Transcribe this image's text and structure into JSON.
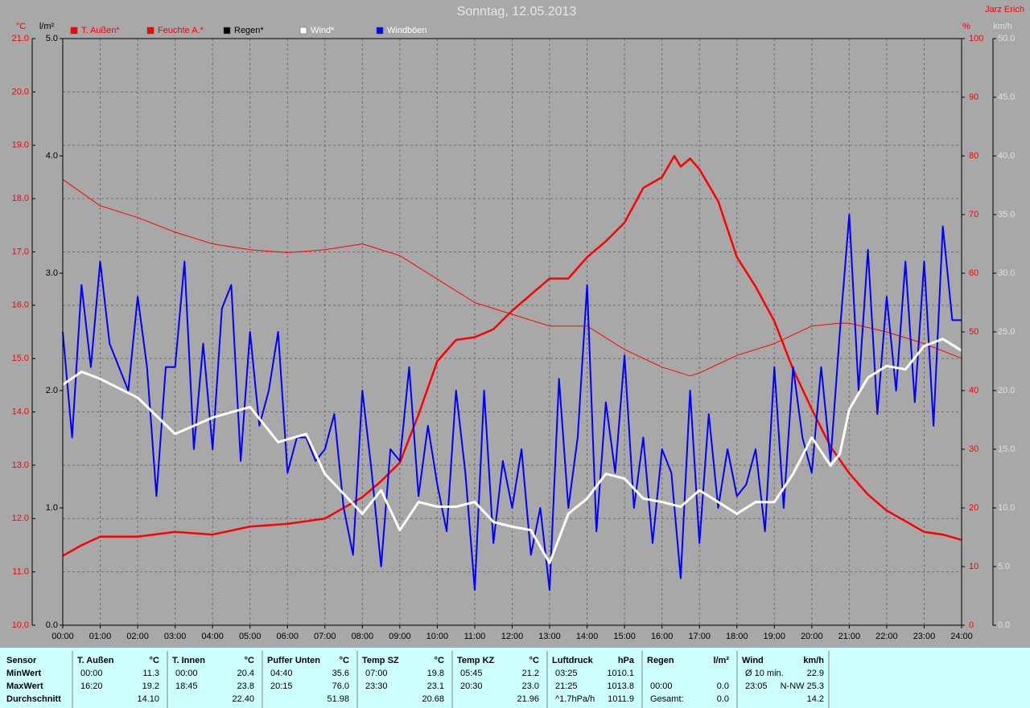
{
  "chart_data": {
    "type": "line",
    "title": "Sonntag, 12.05.2013",
    "author": "Jarz Erich",
    "ylabel": "°C",
    "y2label": "%",
    "y3label": "l/m²",
    "y4label": "km/h",
    "grid": true,
    "xlim": [
      0,
      24
    ],
    "xticks": [
      {
        "value": 0,
        "label": "00:00"
      },
      {
        "value": 1,
        "label": "01:00"
      },
      {
        "value": 2,
        "label": "02:00"
      },
      {
        "value": 3,
        "label": "03:00"
      },
      {
        "value": 4,
        "label": "04:00"
      },
      {
        "value": 5,
        "label": "05:00"
      },
      {
        "value": 6,
        "label": "06:00"
      },
      {
        "value": 7,
        "label": "07:00"
      },
      {
        "value": 8,
        "label": "08:00"
      },
      {
        "value": 9,
        "label": "09:00"
      },
      {
        "value": 10,
        "label": "10:00"
      },
      {
        "value": 11,
        "label": "11:00"
      },
      {
        "value": 12,
        "label": "12:00"
      },
      {
        "value": 13,
        "label": "13:00"
      },
      {
        "value": 14,
        "label": "14:00"
      },
      {
        "value": 15,
        "label": "15:00"
      },
      {
        "value": 16,
        "label": "16:00"
      },
      {
        "value": 17,
        "label": "17:00"
      },
      {
        "value": 18,
        "label": "18:00"
      },
      {
        "value": 19,
        "label": "19:00"
      },
      {
        "value": 20,
        "label": "20:00"
      },
      {
        "value": 21,
        "label": "21:00"
      },
      {
        "value": 22,
        "label": "22:00"
      },
      {
        "value": 23,
        "label": "23:00"
      },
      {
        "value": 24,
        "label": "24:00"
      }
    ],
    "ylim": [
      10,
      21
    ],
    "yticks": [
      {
        "value": 10,
        "label": "10.0"
      },
      {
        "value": 11,
        "label": "11.0"
      },
      {
        "value": 12,
        "label": "12.0"
      },
      {
        "value": 13,
        "label": "13.0"
      },
      {
        "value": 14,
        "label": "14.0"
      },
      {
        "value": 15,
        "label": "15.0"
      },
      {
        "value": 16,
        "label": "16.0"
      },
      {
        "value": 17,
        "label": "17.0"
      },
      {
        "value": 18,
        "label": "18.0"
      },
      {
        "value": 19,
        "label": "19.0"
      },
      {
        "value": 20,
        "label": "20.0"
      },
      {
        "value": 21,
        "label": "21.0"
      }
    ],
    "y2lim": [
      0,
      100
    ],
    "y2ticks": [
      0,
      10,
      20,
      30,
      40,
      50,
      60,
      70,
      80,
      90,
      100
    ],
    "y3lim": [
      0,
      5
    ],
    "y3ticks": [
      {
        "value": 0,
        "label": "0.0"
      },
      {
        "value": 1,
        "label": "1.0"
      },
      {
        "value": 2,
        "label": "2.0"
      },
      {
        "value": 3,
        "label": "3.0"
      },
      {
        "value": 4,
        "label": "4.0"
      },
      {
        "value": 5,
        "label": "5.0"
      }
    ],
    "y4lim": [
      0,
      50
    ],
    "y4ticks": [
      {
        "value": 0,
        "label": "0.0"
      },
      {
        "value": 5,
        "label": "5.0"
      },
      {
        "value": 10,
        "label": "10.0"
      },
      {
        "value": 15,
        "label": "15.0"
      },
      {
        "value": 20,
        "label": "20.0"
      },
      {
        "value": 25,
        "label": "25.0"
      },
      {
        "value": 30,
        "label": "30.0"
      },
      {
        "value": 35,
        "label": "35.0"
      },
      {
        "value": 40,
        "label": "40.0"
      },
      {
        "value": 45,
        "label": "45.0"
      },
      {
        "value": 50,
        "label": "50.0"
      }
    ],
    "series": [
      {
        "name": "T. Außen*",
        "color": "#ff0000",
        "axis": "y",
        "x": [
          0,
          0.5,
          1,
          2,
          3,
          4,
          5,
          6,
          7,
          8,
          8.5,
          9,
          9.5,
          10,
          10.5,
          11,
          11.5,
          12,
          12.5,
          13,
          13.5,
          14,
          14.5,
          15,
          15.5,
          16,
          16.33,
          16.5,
          16.75,
          17,
          17.5,
          18,
          18.5,
          19,
          19.5,
          20,
          20.5,
          21,
          21.5,
          22,
          22.5,
          23,
          23.5,
          24
        ],
        "values": [
          11.3,
          11.5,
          11.66,
          11.66,
          11.75,
          11.7,
          11.85,
          11.9,
          12.0,
          12.4,
          12.7,
          13.05,
          13.95,
          14.95,
          15.35,
          15.4,
          15.55,
          15.9,
          16.2,
          16.5,
          16.5,
          16.9,
          17.2,
          17.55,
          18.2,
          18.4,
          18.8,
          18.6,
          18.75,
          18.55,
          17.95,
          16.9,
          16.35,
          15.7,
          14.8,
          14.05,
          13.35,
          12.85,
          12.45,
          12.15,
          11.95,
          11.75,
          11.7,
          11.6
        ]
      },
      {
        "name": "Feuchte A.*",
        "color": "#ff0000",
        "axis": "y2",
        "x": [
          0,
          1,
          2,
          3,
          4,
          5,
          6,
          7,
          8,
          9,
          10,
          11,
          12,
          13,
          14,
          15,
          16,
          16.75,
          17,
          18,
          19,
          20,
          20.75,
          21,
          22,
          23,
          24
        ],
        "values": [
          76,
          71.5,
          69.5,
          67,
          65,
          64,
          63.5,
          64,
          65,
          63,
          59,
          55,
          53,
          51,
          51,
          47,
          44,
          42.5,
          43,
          46,
          48,
          51,
          51.5,
          51.5,
          50,
          48,
          45.5
        ]
      },
      {
        "name": "Regen*",
        "color": "#000000",
        "axis": "y3",
        "x": [
          0,
          24
        ],
        "values": [
          0,
          0
        ]
      },
      {
        "name": "Wind*",
        "color": "#ffffff",
        "axis": "y4",
        "x": [
          0,
          0.5,
          1,
          2,
          3,
          4,
          5,
          5.75,
          6.5,
          7,
          7.5,
          8,
          8.5,
          9,
          9.5,
          10,
          10.5,
          11,
          11.5,
          12,
          12.5,
          13,
          13.5,
          14,
          14.5,
          15,
          15.5,
          16,
          16.5,
          17,
          17.5,
          18,
          18.5,
          19,
          19.5,
          20,
          20.5,
          20.75,
          21,
          21.5,
          22,
          22.5,
          23,
          23.5,
          24
        ],
        "values": [
          20.5,
          21.6,
          21,
          19.4,
          16.3,
          17.7,
          18.6,
          15.6,
          16.3,
          12.9,
          11.2,
          9.5,
          11.5,
          8.1,
          10.5,
          10.1,
          10.1,
          10.5,
          8.8,
          8.4,
          8.1,
          5.3,
          9.5,
          10.8,
          12.9,
          12.5,
          10.8,
          10.5,
          10.1,
          11.5,
          10.5,
          9.5,
          10.5,
          10.5,
          12.9,
          16.0,
          13.6,
          14.6,
          18.4,
          21.1,
          22.1,
          21.8,
          23.8,
          24.4,
          23.4
        ]
      },
      {
        "name": "Windböen",
        "color": "#0000ff",
        "axis": "y4",
        "x": [
          0,
          0.25,
          0.5,
          0.75,
          1,
          1.25,
          1.5,
          1.75,
          2,
          2.25,
          2.5,
          2.75,
          3,
          3.25,
          3.5,
          3.75,
          4,
          4.25,
          4.5,
          4.75,
          5,
          5.25,
          5.5,
          5.75,
          6,
          6.25,
          6.5,
          6.75,
          7,
          7.25,
          7.5,
          7.75,
          8,
          8.25,
          8.5,
          8.75,
          9,
          9.25,
          9.5,
          9.75,
          10,
          10.25,
          10.5,
          10.75,
          11,
          11.25,
          11.5,
          11.75,
          12,
          12.25,
          12.5,
          12.75,
          13,
          13.25,
          13.5,
          13.75,
          14,
          14.25,
          14.5,
          14.75,
          15,
          15.25,
          15.5,
          15.75,
          16,
          16.25,
          16.5,
          16.75,
          17,
          17.25,
          17.5,
          17.75,
          18,
          18.25,
          18.5,
          18.75,
          19,
          19.25,
          19.5,
          19.75,
          20,
          20.25,
          20.5,
          20.75,
          21,
          21.25,
          21.5,
          21.75,
          22,
          22.25,
          22.5,
          22.75,
          23,
          23.25,
          23.5,
          23.75,
          24
        ],
        "values": [
          25,
          16,
          29,
          22,
          31,
          24,
          22,
          20,
          28,
          22,
          11,
          22,
          22,
          31,
          15,
          24,
          15,
          27,
          29,
          14,
          25,
          17,
          20,
          25,
          13,
          16,
          16,
          14,
          15,
          18,
          10,
          6,
          20,
          13,
          5,
          15,
          14,
          22,
          11,
          17,
          12,
          8,
          20,
          13,
          3,
          20,
          7,
          14,
          10,
          15,
          6,
          10,
          3,
          21,
          10,
          16,
          29,
          8,
          19,
          13,
          23,
          10,
          16,
          7,
          15,
          13,
          4,
          20,
          7,
          18,
          10,
          15,
          11,
          12,
          15,
          8,
          22,
          10,
          22,
          16,
          13,
          22,
          14,
          25,
          35,
          20,
          32,
          18,
          28,
          20,
          31,
          19,
          31,
          17,
          34,
          26,
          26
        ]
      }
    ]
  },
  "table": {
    "row_labels": [
      "Sensor",
      "MinWert",
      "MaxWert",
      "Durchschnitt"
    ],
    "columns": [
      {
        "name": "T. Außen",
        "unit": "°C",
        "cells": [
          [
            "00:00",
            "11.3"
          ],
          [
            "16:20",
            "19.2"
          ],
          [
            null,
            "14.10"
          ]
        ]
      },
      {
        "name": "T. Innen",
        "unit": "°C",
        "cells": [
          [
            "00:00",
            "20.4"
          ],
          [
            "18:45",
            "23.8"
          ],
          [
            null,
            "22.40"
          ]
        ]
      },
      {
        "name": "Puffer Unten",
        "unit": "°C",
        "cells": [
          [
            "04:40",
            "35.6"
          ],
          [
            "20:15",
            "76.0"
          ],
          [
            null,
            "51.98"
          ]
        ]
      },
      {
        "name": "Temp SZ",
        "unit": "°C",
        "cells": [
          [
            "07:00",
            "19.8"
          ],
          [
            "23:30",
            "23.1"
          ],
          [
            null,
            "20.68"
          ]
        ]
      },
      {
        "name": "Temp KZ",
        "unit": "°C",
        "cells": [
          [
            "05:45",
            "21.2"
          ],
          [
            "20:30",
            "23.0"
          ],
          [
            null,
            "21.96"
          ]
        ]
      },
      {
        "name": "Luftdruck",
        "unit": "hPa",
        "cells": [
          [
            "03:25",
            "1010.1"
          ],
          [
            "21:25",
            "1013.8"
          ],
          [
            "^1.7hPa/h",
            "1011.9"
          ]
        ]
      },
      {
        "name": "Regen",
        "unit": "l/m²",
        "cells": [
          [
            null,
            null
          ],
          [
            "00:00",
            "0.0"
          ],
          [
            "Gesamt:",
            "0.0"
          ]
        ]
      },
      {
        "name": "Wind",
        "unit": "km/h",
        "cells": [
          [
            "Ø 10 min.",
            "22.9"
          ],
          [
            "23:05",
            "N-NW 25.3"
          ],
          [
            null,
            "14.2"
          ]
        ]
      }
    ]
  }
}
